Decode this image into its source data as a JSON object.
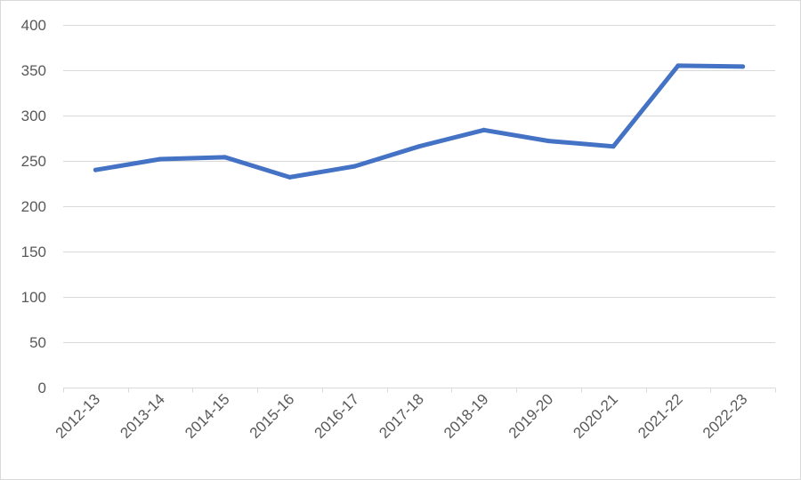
{
  "chart_data": {
    "type": "line",
    "title": "",
    "xlabel": "",
    "ylabel": "",
    "categories": [
      "2012-13",
      "2013-14",
      "2014-15",
      "2015-16",
      "2016-17",
      "2017-18",
      "2018-19",
      "2019-20",
      "2020-21",
      "2021-22",
      "2022-23"
    ],
    "series": [
      {
        "values": [
          240,
          252,
          254,
          232,
          244,
          266,
          284,
          272,
          266,
          355,
          354
        ],
        "color": "#4472c4"
      }
    ],
    "ylim": [
      0,
      400
    ],
    "yticks": [
      0,
      50,
      100,
      150,
      200,
      250,
      300,
      350,
      400
    ],
    "grid": true,
    "legend": "none"
  }
}
